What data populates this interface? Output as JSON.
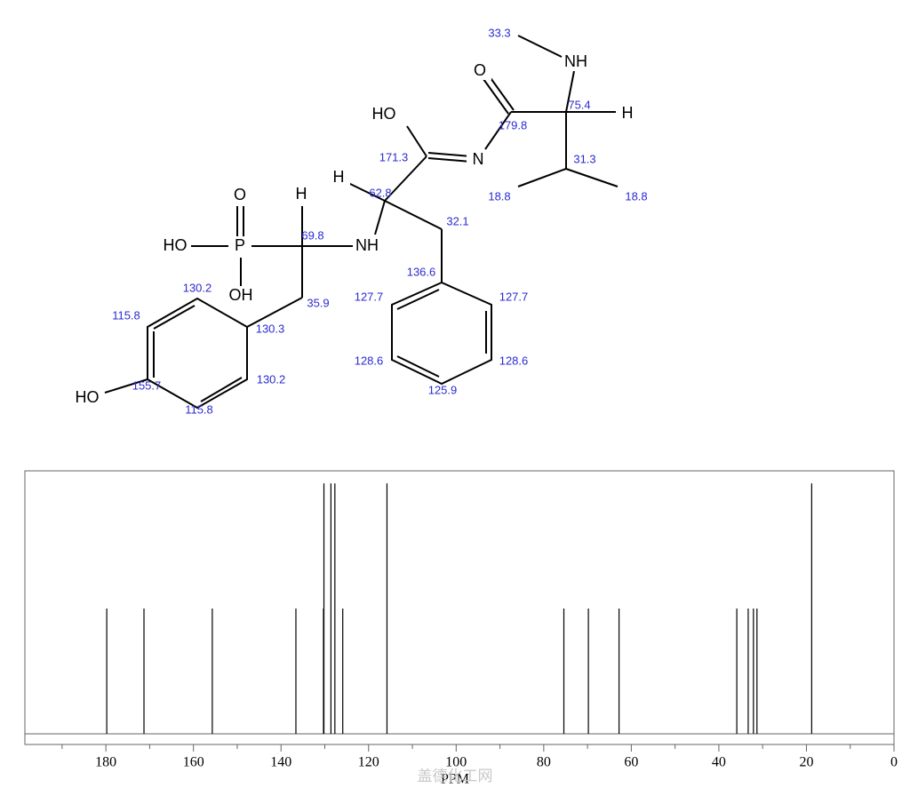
{
  "structure": {
    "labels": [
      "33.3",
      "NH",
      "O",
      "75.4",
      "H",
      "HO",
      "179.8",
      "171.3",
      "N",
      "31.3",
      "H",
      "62.8",
      "18.8",
      "18.8",
      "O",
      "H",
      "32.1",
      "69.8",
      "HO",
      "P",
      "NH",
      "OH",
      "130.2",
      "136.6",
      "127.7",
      "127.7",
      "35.9",
      "115.8",
      "130.3",
      "128.6",
      "128.6",
      "HO",
      "155.7",
      "130.2",
      "115.8",
      "125.9"
    ]
  },
  "chart_data": {
    "type": "spectrum",
    "xlabel": "PPM",
    "watermark": "盖德化工网",
    "x": [
      179.8,
      171.3,
      155.7,
      136.6,
      130.3,
      130.2,
      128.6,
      127.7,
      125.9,
      115.8,
      75.4,
      69.8,
      62.8,
      35.9,
      33.3,
      32.1,
      31.3,
      18.8
    ],
    "values": [
      1,
      1,
      1,
      1,
      1,
      2,
      2,
      2,
      1,
      2,
      1,
      1,
      1,
      1,
      1,
      1,
      1,
      2
    ],
    "color": "#000000",
    "xlim": [
      198.5,
      0
    ],
    "ylim": [
      0,
      2.1
    ],
    "xticks": [
      180,
      160,
      140,
      120,
      100,
      80,
      60,
      40,
      20,
      0
    ],
    "xminorticks": [
      190,
      170,
      150,
      130,
      110,
      90,
      70,
      50,
      30,
      10
    ]
  }
}
